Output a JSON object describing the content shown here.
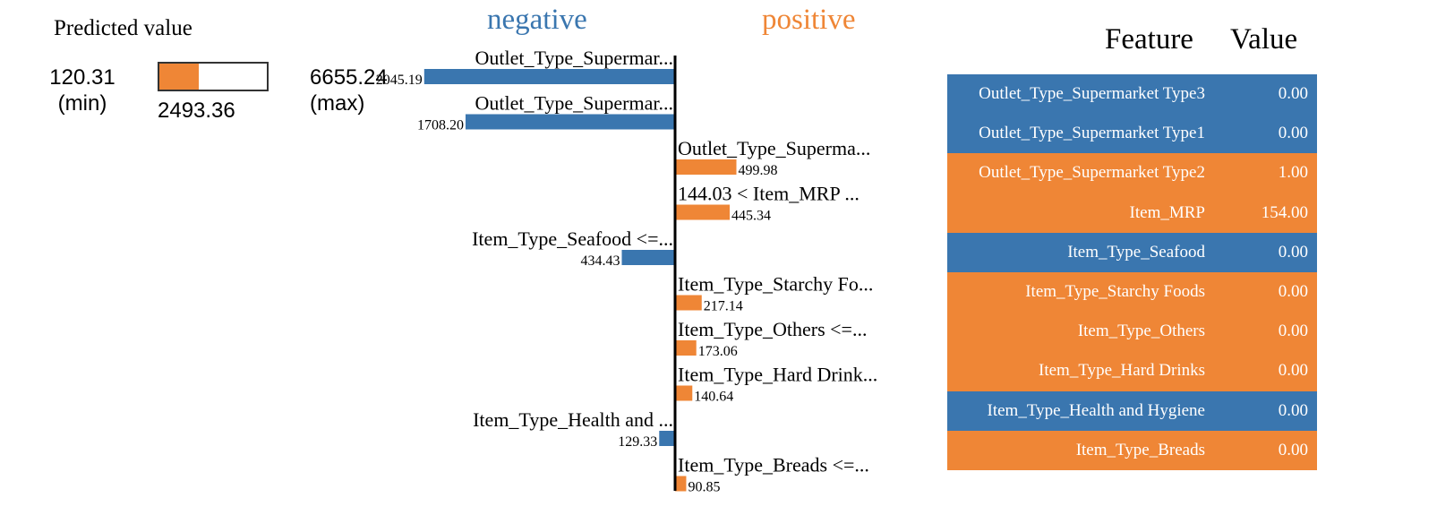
{
  "colors": {
    "negative": "#3a76af",
    "positive": "#ef8636",
    "axis": "#000000"
  },
  "predicted": {
    "title": "Predicted value",
    "min_value": "120.31",
    "min_label": "(min)",
    "max_value": "6655.24",
    "max_label": "(max)",
    "current_value": "2493.36",
    "min": 120.31,
    "max": 6655.24,
    "current": 2493.36
  },
  "chart_data": {
    "type": "bar",
    "orientation": "horizontal-diverging",
    "negative_label": "negative",
    "positive_label": "positive",
    "bars": [
      {
        "label": "Outlet_Type_Supermar...",
        "value_label": "2045.19",
        "value": -2045.19
      },
      {
        "label": "Outlet_Type_Supermar...",
        "value_label": "1708.20",
        "value": -1708.2
      },
      {
        "label": "Outlet_Type_Superma...",
        "value_label": "499.98",
        "value": 499.98
      },
      {
        "label": "144.03 < Item_MRP ...",
        "value_label": "445.34",
        "value": 445.34
      },
      {
        "label": "Item_Type_Seafood <=...",
        "value_label": "434.43",
        "value": -434.43
      },
      {
        "label": "Item_Type_Starchy Fo...",
        "value_label": "217.14",
        "value": 217.14
      },
      {
        "label": "Item_Type_Others <=...",
        "value_label": "173.06",
        "value": 173.06
      },
      {
        "label": "Item_Type_Hard Drink...",
        "value_label": "140.64",
        "value": 140.64
      },
      {
        "label": "Item_Type_Health and ...",
        "value_label": "129.33",
        "value": -129.33
      },
      {
        "label": "Item_Type_Breads <=...",
        "value_label": "90.85",
        "value": 90.85
      }
    ]
  },
  "feature_table": {
    "header_feature": "Feature",
    "header_value": "Value",
    "rows": [
      {
        "feature": "Outlet_Type_Supermarket Type3",
        "value": "0.00",
        "sign": "negative"
      },
      {
        "feature": "Outlet_Type_Supermarket Type1",
        "value": "0.00",
        "sign": "negative"
      },
      {
        "feature": "Outlet_Type_Supermarket Type2",
        "value": "1.00",
        "sign": "positive"
      },
      {
        "feature": "Item_MRP",
        "value": "154.00",
        "sign": "positive"
      },
      {
        "feature": "Item_Type_Seafood",
        "value": "0.00",
        "sign": "negative"
      },
      {
        "feature": "Item_Type_Starchy Foods",
        "value": "0.00",
        "sign": "positive"
      },
      {
        "feature": "Item_Type_Others",
        "value": "0.00",
        "sign": "positive"
      },
      {
        "feature": "Item_Type_Hard Drinks",
        "value": "0.00",
        "sign": "positive"
      },
      {
        "feature": "Item_Type_Health and Hygiene",
        "value": "0.00",
        "sign": "negative"
      },
      {
        "feature": "Item_Type_Breads",
        "value": "0.00",
        "sign": "positive"
      }
    ]
  }
}
